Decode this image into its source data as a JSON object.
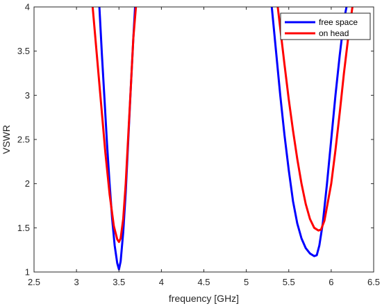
{
  "chart_data": {
    "type": "line",
    "title": "",
    "xlabel": "frequency [GHz]",
    "ylabel": "VSWR",
    "xlim": [
      2.5,
      6.5
    ],
    "ylim": [
      1,
      4
    ],
    "x_ticks": [
      2.5,
      3,
      3.5,
      4,
      4.5,
      5,
      5.5,
      6,
      6.5
    ],
    "x_tick_labels": [
      "2.5",
      "3",
      "3.5",
      "4",
      "4.5",
      "5",
      "5.5",
      "6",
      "6.5"
    ],
    "y_ticks": [
      1,
      1.5,
      2,
      2.5,
      3,
      3.5,
      4
    ],
    "y_tick_labels": [
      "1",
      "1.5",
      "2",
      "2.5",
      "3",
      "3.5",
      "4"
    ],
    "grid": false,
    "legend_position": "top-right",
    "series": [
      {
        "name": "free space",
        "color": "#0000ff",
        "segments": [
          [
            [
              3.27,
              4.0
            ],
            [
              3.3,
              3.45
            ],
            [
              3.33,
              2.95
            ],
            [
              3.36,
              2.45
            ],
            [
              3.39,
              2.0
            ],
            [
              3.42,
              1.6
            ],
            [
              3.45,
              1.3
            ],
            [
              3.48,
              1.1
            ],
            [
              3.5,
              1.03
            ],
            [
              3.52,
              1.12
            ],
            [
              3.55,
              1.45
            ],
            [
              3.58,
              1.9
            ],
            [
              3.61,
              2.5
            ],
            [
              3.64,
              3.1
            ],
            [
              3.67,
              3.65
            ],
            [
              3.69,
              4.0
            ]
          ],
          [
            [
              5.3,
              4.0
            ],
            [
              5.35,
              3.5
            ],
            [
              5.4,
              3.0
            ],
            [
              5.45,
              2.55
            ],
            [
              5.5,
              2.15
            ],
            [
              5.55,
              1.8
            ],
            [
              5.6,
              1.55
            ],
            [
              5.65,
              1.38
            ],
            [
              5.7,
              1.27
            ],
            [
              5.75,
              1.21
            ],
            [
              5.8,
              1.18
            ],
            [
              5.83,
              1.19
            ],
            [
              5.86,
              1.3
            ],
            [
              5.9,
              1.55
            ],
            [
              5.95,
              2.0
            ],
            [
              6.0,
              2.5
            ],
            [
              6.05,
              3.0
            ],
            [
              6.1,
              3.45
            ],
            [
              6.15,
              3.85
            ],
            [
              6.18,
              4.0
            ]
          ]
        ]
      },
      {
        "name": "on head",
        "color": "#ff0000",
        "segments": [
          [
            [
              3.19,
              4.0
            ],
            [
              3.24,
              3.45
            ],
            [
              3.29,
              2.9
            ],
            [
              3.34,
              2.35
            ],
            [
              3.39,
              1.88
            ],
            [
              3.44,
              1.52
            ],
            [
              3.48,
              1.37
            ],
            [
              3.5,
              1.34
            ],
            [
              3.52,
              1.38
            ],
            [
              3.55,
              1.6
            ],
            [
              3.58,
              2.0
            ],
            [
              3.61,
              2.55
            ],
            [
              3.64,
              3.1
            ],
            [
              3.67,
              3.65
            ],
            [
              3.7,
              4.0
            ]
          ],
          [
            [
              5.37,
              4.0
            ],
            [
              5.45,
              3.35
            ],
            [
              5.5,
              2.95
            ],
            [
              5.55,
              2.6
            ],
            [
              5.6,
              2.28
            ],
            [
              5.65,
              2.0
            ],
            [
              5.7,
              1.77
            ],
            [
              5.75,
              1.6
            ],
            [
              5.8,
              1.5
            ],
            [
              5.85,
              1.47
            ],
            [
              5.88,
              1.48
            ],
            [
              5.92,
              1.58
            ],
            [
              6.0,
              2.0
            ],
            [
              6.05,
              2.38
            ],
            [
              6.1,
              2.8
            ],
            [
              6.15,
              3.25
            ],
            [
              6.2,
              3.65
            ],
            [
              6.25,
              4.0
            ]
          ]
        ]
      }
    ]
  }
}
